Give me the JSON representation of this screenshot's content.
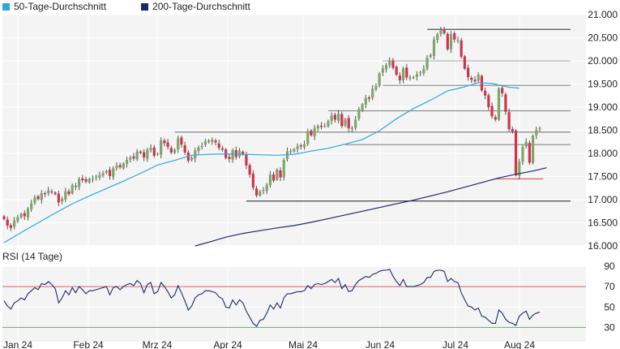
{
  "legend": {
    "sma50_label": "50-Tage-Durchschnitt",
    "sma200_label": "200-Tage-Durchschnitt",
    "sma50_color": "#29a9e1",
    "sma200_color": "#1a2a6c"
  },
  "rsi_title": "RSI (14 Tage)",
  "colors": {
    "up": "#7fa66a",
    "down": "#d2334c",
    "background": "#f4f4f4",
    "rsi_line": "#1a2a6c",
    "rsi_upper_line": "#e06060",
    "rsi_lower_line": "#6aaa60"
  },
  "chart_data": [
    {
      "type": "candlestick",
      "title": "",
      "x_tick_labels": [
        "Jan 24",
        "Feb 24",
        "Mrz 24",
        "Apr 24",
        "Mai 24",
        "Jun 24",
        "Jul 24",
        "Aug 24"
      ],
      "y_ticks": [
        "16.000",
        "16.500",
        "17.000",
        "17.500",
        "18.000",
        "18.500",
        "19.000",
        "19.500",
        "20.000",
        "20.500",
        "21.000"
      ],
      "ylim": [
        16000,
        21000
      ],
      "grid": true,
      "legend_position": "top-left",
      "close": [
        16580,
        16440,
        16390,
        16550,
        16620,
        16690,
        16640,
        16800,
        16920,
        17050,
        17010,
        17140,
        17120,
        17200,
        17160,
        17120,
        16940,
        17020,
        17180,
        17120,
        17320,
        17280,
        17450,
        17420,
        17390,
        17450,
        17460,
        17500,
        17530,
        17570,
        17620,
        17510,
        17680,
        17730,
        17700,
        17780,
        17860,
        17910,
        17890,
        18040,
        18010,
        17910,
        18080,
        18120,
        17950,
        17990,
        18280,
        18220,
        18140,
        18020,
        18080,
        18320,
        18190,
        18020,
        17840,
        17910,
        18060,
        18130,
        18160,
        18260,
        18280,
        18260,
        18240,
        18120,
        18080,
        17900,
        17880,
        18070,
        17920,
        18060,
        17980,
        17740,
        17540,
        17260,
        17090,
        17180,
        17210,
        17320,
        17540,
        17410,
        17650,
        17480,
        17860,
        18050,
        18050,
        18090,
        18150,
        18150,
        18200,
        18480,
        18390,
        18550,
        18590,
        18570,
        18600,
        18700,
        18820,
        18730,
        18860,
        18590,
        18740,
        18540,
        18550,
        18730,
        18950,
        19060,
        19200,
        19180,
        19400,
        19460,
        19730,
        19840,
        19910,
        20000,
        19850,
        19700,
        19580,
        19840,
        19640,
        19640,
        19650,
        19710,
        19750,
        19830,
        20070,
        20130,
        20460,
        20570,
        20660,
        20600,
        20250,
        20580,
        20460,
        20450,
        20090,
        19830,
        19650,
        19590,
        19560,
        19700,
        19360,
        19250,
        19000,
        18800,
        18730,
        19400,
        19300,
        18900,
        18520,
        18470,
        17530,
        17820,
        18140,
        18250,
        17800,
        18380,
        18510,
        18540
      ],
      "sma50_points": [
        [
          0,
          16070
        ],
        [
          5,
          16290
        ],
        [
          10,
          16500
        ],
        [
          15,
          16710
        ],
        [
          20,
          16910
        ],
        [
          25,
          17080
        ],
        [
          30,
          17240
        ],
        [
          35,
          17400
        ],
        [
          40,
          17570
        ],
        [
          45,
          17750
        ],
        [
          50,
          17850
        ],
        [
          55,
          17960
        ],
        [
          60,
          17980
        ],
        [
          65,
          17990
        ],
        [
          70,
          17980
        ],
        [
          75,
          17970
        ],
        [
          80,
          17960
        ],
        [
          85,
          17980
        ],
        [
          90,
          18050
        ],
        [
          95,
          18110
        ],
        [
          100,
          18200
        ],
        [
          105,
          18300
        ],
        [
          110,
          18490
        ],
        [
          115,
          18750
        ],
        [
          120,
          18970
        ],
        [
          125,
          19150
        ],
        [
          130,
          19350
        ],
        [
          135,
          19440
        ],
        [
          139,
          19530
        ],
        [
          143,
          19510
        ],
        [
          148,
          19430
        ],
        [
          151,
          19410
        ]
      ],
      "sma200_points": [
        [
          56,
          16000
        ],
        [
          60,
          16080
        ],
        [
          65,
          16190
        ],
        [
          70,
          16270
        ],
        [
          75,
          16330
        ],
        [
          80,
          16390
        ],
        [
          85,
          16440
        ],
        [
          90,
          16510
        ],
        [
          95,
          16590
        ],
        [
          100,
          16670
        ],
        [
          105,
          16750
        ],
        [
          110,
          16830
        ],
        [
          115,
          16910
        ],
        [
          120,
          16990
        ],
        [
          125,
          17080
        ],
        [
          130,
          17170
        ],
        [
          135,
          17270
        ],
        [
          140,
          17370
        ],
        [
          145,
          17470
        ],
        [
          150,
          17550
        ],
        [
          155,
          17620
        ],
        [
          159,
          17690
        ]
      ],
      "support_lines": [
        {
          "value": 20680,
          "from": 124,
          "to": 166,
          "color": "#555555"
        },
        {
          "value": 20000,
          "from": 111,
          "to": 166,
          "color": "#bbbbbb"
        },
        {
          "value": 19470,
          "from": 111,
          "to": 166,
          "color": "#888888"
        },
        {
          "value": 18920,
          "from": 95,
          "to": 166,
          "color": "#888888"
        },
        {
          "value": 18460,
          "from": 50,
          "to": 166,
          "color": "#888888"
        },
        {
          "value": 18190,
          "from": 100,
          "to": 166,
          "color": "#888888"
        },
        {
          "value": 17450,
          "from": 144,
          "to": 158,
          "color": "#e06060"
        },
        {
          "value": 16970,
          "from": 71,
          "to": 166,
          "color": "#333333"
        }
      ]
    },
    {
      "type": "line",
      "title": "RSI (14 Tage)",
      "y_ticks": [
        "30",
        "50",
        "70",
        "90"
      ],
      "ylim": [
        16,
        90
      ],
      "grid": true,
      "upper_band": 70,
      "lower_band": 30,
      "values": [
        56,
        51,
        48,
        54,
        56,
        59,
        57,
        63,
        66,
        69,
        67,
        73,
        72,
        75,
        72,
        68,
        54,
        59,
        66,
        62,
        69,
        64,
        70,
        67,
        63,
        66,
        66,
        67,
        68,
        69,
        70,
        62,
        69,
        70,
        67,
        70,
        72,
        73,
        71,
        76,
        73,
        64,
        72,
        74,
        63,
        65,
        74,
        70,
        65,
        59,
        62,
        71,
        64,
        56,
        47,
        51,
        59,
        62,
        63,
        66,
        66,
        65,
        64,
        60,
        58,
        50,
        49,
        57,
        52,
        57,
        54,
        46,
        40,
        34,
        31,
        37,
        38,
        44,
        52,
        48,
        54,
        49,
        59,
        63,
        63,
        64,
        65,
        65,
        66,
        71,
        68,
        72,
        73,
        72,
        73,
        75,
        77,
        74,
        78,
        68,
        72,
        65,
        66,
        72,
        76,
        78,
        80,
        79,
        82,
        83,
        85,
        86,
        86,
        87,
        80,
        75,
        71,
        77,
        70,
        70,
        70,
        71,
        72,
        74,
        79,
        79,
        85,
        86,
        86,
        85,
        75,
        78,
        75,
        74,
        64,
        57,
        51,
        50,
        47,
        49,
        41,
        40,
        37,
        34,
        34,
        47,
        44,
        38,
        35,
        34,
        32,
        41,
        44,
        46,
        38,
        42,
        44,
        45
      ]
    }
  ]
}
